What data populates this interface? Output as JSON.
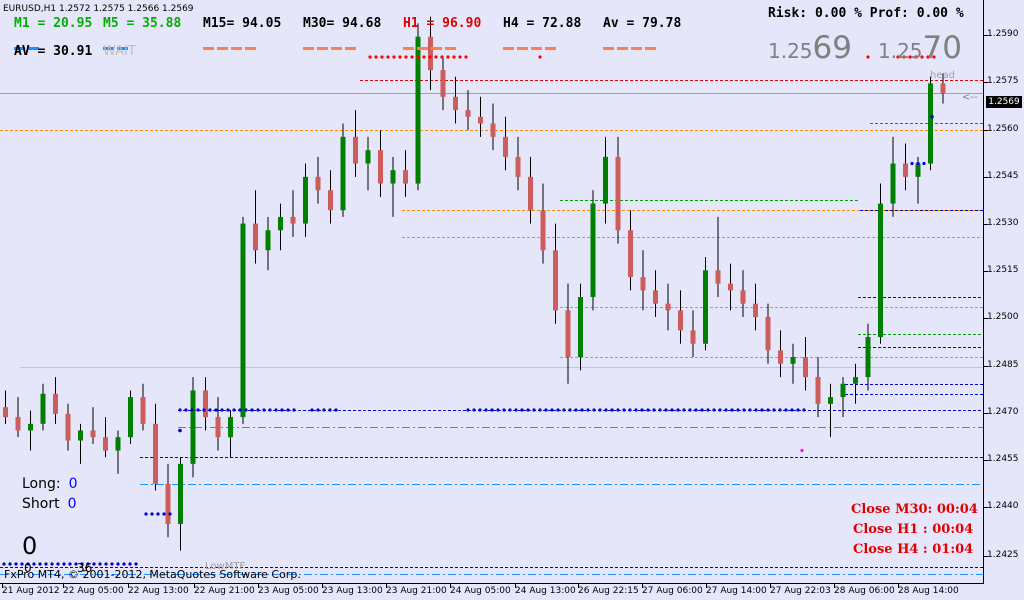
{
  "window": {
    "symbol_title": "EURUSD,H1  1.2572 1.2575 1.2566 1.2569"
  },
  "indicators": [
    {
      "label": "M1 = 20.95",
      "color": "#00b000",
      "dash_color": "#1e90ff"
    },
    {
      "label": "M5 = 35.88",
      "color": "#00b000",
      "dash_color": "#1e90ff"
    },
    {
      "label": "M15= 94.05",
      "color": "#000000",
      "dash_color": "#ff7f50"
    },
    {
      "label": "M30= 94.68",
      "color": "#000000",
      "dash_color": "#ff7f50"
    },
    {
      "label": "H1 = 96.90",
      "color": "#e00000",
      "dash_color": "#ff7f50"
    },
    {
      "label": "H4 = 72.88",
      "color": "#000000",
      "dash_color": "#ff7f50"
    },
    {
      "label": "Av = 79.78",
      "color": "#000000",
      "dash_color": "#ff7f50"
    }
  ],
  "av_line": {
    "label": "AV =",
    "value": "30.91"
  },
  "wait_label": "WAIT",
  "risk_line": "Risk: 0.00 %  Prof: 0.00 %",
  "bid_display": {
    "bid_small": "1.25",
    "bid_big": "69",
    "ask_small": "1.25",
    "ask_big": "70"
  },
  "head_label": "head",
  "arrow_label": "<--",
  "long_short": {
    "long_label": "Long:",
    "long_value": "0",
    "short_label": "Short",
    "short_value": "0"
  },
  "big_zero": "0",
  "small_zero": "0",
  "small_36": "36",
  "lowmtf_label": "LowMTF",
  "close_times": [
    {
      "label": "Close M30: 00:04"
    },
    {
      "label": "Close H1 :  00:04"
    },
    {
      "label": "Close H4 :  01:04"
    }
  ],
  "copyright": "FxPro MT4, © 2001-2012, MetaQuotes Software Corp.",
  "current_price": "1.2569",
  "y_axis": [
    "1.2590",
    "1.2575",
    "1.2560",
    "1.2545",
    "1.2530",
    "1.2515",
    "1.2500",
    "1.2485",
    "1.2470",
    "1.2455",
    "1.2440",
    "1.2425"
  ],
  "x_axis": [
    "21 Aug 2012",
    "22 Aug 05:00",
    "22 Aug 13:00",
    "22 Aug 21:00",
    "23 Aug 05:00",
    "23 Aug 13:00",
    "23 Aug 21:00",
    "24 Aug 05:00",
    "24 Aug 13:00",
    "26 Aug 22:15",
    "27 Aug 06:00",
    "27 Aug 14:00",
    "27 Aug 22:03",
    "28 Aug 06:00",
    "28 Aug 14:00"
  ],
  "colors": {
    "background": "#e6e6fa",
    "bull": "#008000",
    "bear": "#cd5c5c",
    "resistance_dots": "#ff0000",
    "support_dots": "#0000cd"
  },
  "chart_data": {
    "type": "candlestick",
    "title": "EURUSD,H1",
    "ylim": [
      1.2422,
      1.2597
    ],
    "candles": [
      [
        1.2475,
        1.248,
        1.247,
        1.2472
      ],
      [
        1.2472,
        1.2478,
        1.2466,
        1.2468
      ],
      [
        1.2468,
        1.2474,
        1.2462,
        1.247
      ],
      [
        1.247,
        1.2482,
        1.2468,
        1.2479
      ],
      [
        1.2479,
        1.2484,
        1.247,
        1.2473
      ],
      [
        1.2473,
        1.2476,
        1.2462,
        1.2465
      ],
      [
        1.2465,
        1.247,
        1.2458,
        1.2468
      ],
      [
        1.2468,
        1.2475,
        1.2464,
        1.2466
      ],
      [
        1.2466,
        1.2472,
        1.246,
        1.2462
      ],
      [
        1.2462,
        1.2468,
        1.2455,
        1.2466
      ],
      [
        1.2466,
        1.248,
        1.2464,
        1.2478
      ],
      [
        1.2478,
        1.2482,
        1.2468,
        1.247
      ],
      [
        1.247,
        1.2476,
        1.245,
        1.2452
      ],
      [
        1.2452,
        1.2458,
        1.2436,
        1.244
      ],
      [
        1.244,
        1.246,
        1.2432,
        1.2458
      ],
      [
        1.2458,
        1.2484,
        1.2454,
        1.248
      ],
      [
        1.248,
        1.2484,
        1.2468,
        1.2472
      ],
      [
        1.2472,
        1.2478,
        1.2462,
        1.2466
      ],
      [
        1.2466,
        1.2474,
        1.246,
        1.2472
      ],
      [
        1.2472,
        1.2532,
        1.247,
        1.253
      ],
      [
        1.253,
        1.254,
        1.2518,
        1.2522
      ],
      [
        1.2522,
        1.2532,
        1.2516,
        1.2528
      ],
      [
        1.2528,
        1.2536,
        1.2522,
        1.2532
      ],
      [
        1.2532,
        1.254,
        1.2526,
        1.253
      ],
      [
        1.253,
        1.2548,
        1.2526,
        1.2544
      ],
      [
        1.2544,
        1.255,
        1.2536,
        1.254
      ],
      [
        1.254,
        1.2546,
        1.253,
        1.2534
      ],
      [
        1.2534,
        1.256,
        1.2532,
        1.2556
      ],
      [
        1.2556,
        1.2564,
        1.2544,
        1.2548
      ],
      [
        1.2548,
        1.2556,
        1.254,
        1.2552
      ],
      [
        1.2552,
        1.2558,
        1.2538,
        1.2542
      ],
      [
        1.2542,
        1.255,
        1.2532,
        1.2546
      ],
      [
        1.2546,
        1.2552,
        1.2538,
        1.2542
      ],
      [
        1.2542,
        1.259,
        1.254,
        1.2586
      ],
      [
        1.2586,
        1.2592,
        1.257,
        1.2576
      ],
      [
        1.2576,
        1.258,
        1.2564,
        1.2568
      ],
      [
        1.2568,
        1.2574,
        1.256,
        1.2564
      ],
      [
        1.2564,
        1.257,
        1.2558,
        1.2562
      ],
      [
        1.2562,
        1.2568,
        1.2556,
        1.256
      ],
      [
        1.256,
        1.2566,
        1.2552,
        1.2556
      ],
      [
        1.2556,
        1.2562,
        1.2546,
        1.255
      ],
      [
        1.255,
        1.2556,
        1.254,
        1.2544
      ],
      [
        1.2544,
        1.255,
        1.253,
        1.2534
      ],
      [
        1.2534,
        1.2542,
        1.2518,
        1.2522
      ],
      [
        1.2522,
        1.253,
        1.25,
        1.2504
      ],
      [
        1.2504,
        1.2512,
        1.2482,
        1.249
      ],
      [
        1.249,
        1.2512,
        1.2486,
        1.2508
      ],
      [
        1.2508,
        1.254,
        1.2504,
        1.2536
      ],
      [
        1.2536,
        1.2556,
        1.253,
        1.255
      ],
      [
        1.255,
        1.2556,
        1.2524,
        1.2528
      ],
      [
        1.2528,
        1.2534,
        1.251,
        1.2514
      ],
      [
        1.2514,
        1.2522,
        1.2504,
        1.251
      ],
      [
        1.251,
        1.2516,
        1.2502,
        1.2506
      ],
      [
        1.2506,
        1.2512,
        1.2498,
        1.2504
      ],
      [
        1.2504,
        1.251,
        1.2494,
        1.2498
      ],
      [
        1.2498,
        1.2504,
        1.249,
        1.2494
      ],
      [
        1.2494,
        1.252,
        1.2492,
        1.2516
      ],
      [
        1.2516,
        1.2532,
        1.2508,
        1.2512
      ],
      [
        1.2512,
        1.2518,
        1.2504,
        1.251
      ],
      [
        1.251,
        1.2516,
        1.2502,
        1.2506
      ],
      [
        1.2506,
        1.2512,
        1.2498,
        1.2502
      ],
      [
        1.2502,
        1.2506,
        1.2488,
        1.2492
      ],
      [
        1.2492,
        1.2498,
        1.2484,
        1.2488
      ],
      [
        1.2488,
        1.2494,
        1.2482,
        1.249
      ],
      [
        1.249,
        1.2496,
        1.248,
        1.2484
      ],
      [
        1.2484,
        1.249,
        1.2472,
        1.2476
      ],
      [
        1.2476,
        1.2482,
        1.2466,
        1.2478
      ],
      [
        1.2478,
        1.2484,
        1.2472,
        1.2482
      ],
      [
        1.2482,
        1.2488,
        1.2476,
        1.2484
      ],
      [
        1.2484,
        1.25,
        1.248,
        1.2496
      ],
      [
        1.2496,
        1.2542,
        1.2494,
        1.2536
      ],
      [
        1.2536,
        1.2556,
        1.2532,
        1.2548
      ],
      [
        1.2548,
        1.2554,
        1.254,
        1.2544
      ],
      [
        1.2544,
        1.255,
        1.2536,
        1.2548
      ],
      [
        1.2548,
        1.2574,
        1.2546,
        1.2572
      ],
      [
        1.2572,
        1.2575,
        1.2566,
        1.2569
      ]
    ]
  }
}
